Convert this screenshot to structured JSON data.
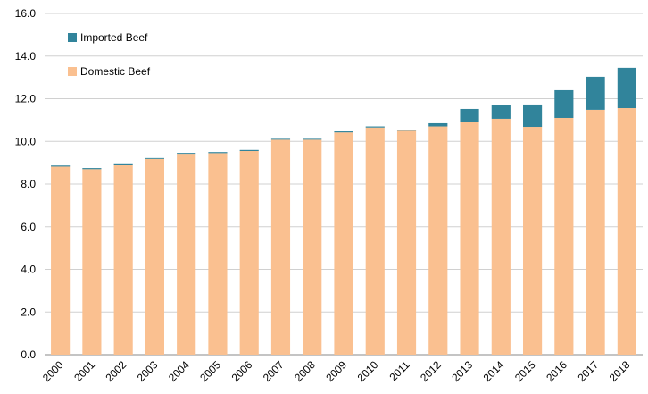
{
  "chart_data": {
    "type": "stacked_bar",
    "categories": [
      "2000",
      "2001",
      "2002",
      "2003",
      "2004",
      "2005",
      "2006",
      "2007",
      "2008",
      "2009",
      "2010",
      "2011",
      "2012",
      "2013",
      "2014",
      "2015",
      "2016",
      "2017",
      "2018"
    ],
    "series": [
      {
        "name": "Domestic Beef",
        "color": "#fac090",
        "values": [
          8.82,
          8.7,
          8.88,
          9.18,
          9.42,
          9.45,
          9.55,
          10.08,
          10.08,
          10.42,
          10.65,
          10.5,
          10.7,
          10.89,
          11.06,
          10.68,
          11.1,
          11.48,
          11.56
        ]
      },
      {
        "name": "Imported Beef",
        "color": "#31849b",
        "values": [
          0.05,
          0.05,
          0.05,
          0.04,
          0.04,
          0.05,
          0.05,
          0.04,
          0.04,
          0.05,
          0.05,
          0.05,
          0.15,
          0.63,
          0.63,
          1.05,
          1.3,
          1.55,
          1.89
        ]
      }
    ],
    "ylim": [
      0,
      16
    ],
    "yticks": [
      {
        "value": 0,
        "label": "0.0"
      },
      {
        "value": 2,
        "label": "2.0"
      },
      {
        "value": 4,
        "label": "4.0"
      },
      {
        "value": 6,
        "label": "6.0"
      },
      {
        "value": 8,
        "label": "8.0"
      },
      {
        "value": 10,
        "label": "10.0"
      },
      {
        "value": 12,
        "label": "12.0"
      },
      {
        "value": 14,
        "label": "14.0"
      },
      {
        "value": 16,
        "label": "16.0"
      }
    ],
    "grid": true,
    "legend": "upper left"
  }
}
